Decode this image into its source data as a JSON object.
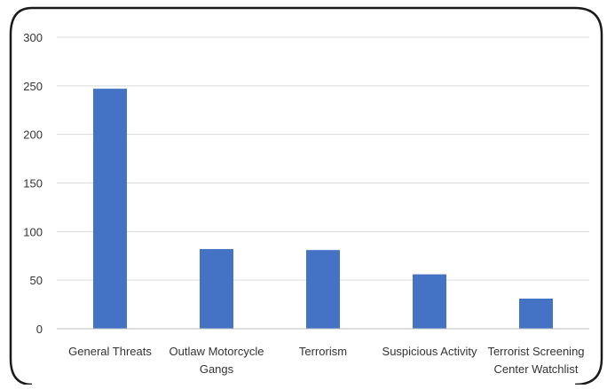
{
  "chart_data": {
    "type": "bar",
    "title": "",
    "xlabel": "",
    "ylabel": "",
    "categories": [
      [
        "General Threats"
      ],
      [
        "Outlaw Motorcycle",
        "Gangs"
      ],
      [
        "Terrorism"
      ],
      [
        "Suspicious Activity"
      ],
      [
        "Terrorist Screening",
        "Center Watchlist"
      ]
    ],
    "values": [
      247,
      82,
      81,
      56,
      31
    ],
    "ylim": [
      0,
      300
    ],
    "yticks": [
      0,
      50,
      100,
      150,
      200,
      250,
      300
    ],
    "grid": true,
    "legend": "none",
    "colors": {
      "bar": "#4472C4",
      "grid": "#d9d9d9",
      "axis": "#bfbfbf",
      "frame": "#1a1a1a",
      "text": "#333333"
    }
  }
}
